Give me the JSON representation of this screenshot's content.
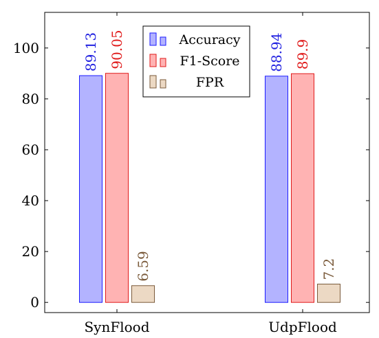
{
  "chart_data": {
    "type": "bar",
    "title": "",
    "xlabel": "",
    "ylabel": "",
    "categories": [
      "SynFlood",
      "UdpFlood"
    ],
    "series": [
      {
        "name": "Accuracy",
        "values": [
          89.13,
          88.94
        ],
        "labels": [
          "89.13",
          "88.94"
        ],
        "fill": "#b3b3ff",
        "stroke": "#1a1aff",
        "text_color": "#2020e0"
      },
      {
        "name": "F1-Score",
        "values": [
          90.05,
          89.9
        ],
        "labels": [
          "90.05",
          "89.9"
        ],
        "fill": "#ffb3b3",
        "stroke": "#e01a1a",
        "text_color": "#e01a1a"
      },
      {
        "name": "FPR",
        "values": [
          6.59,
          7.2
        ],
        "labels": [
          "6.59",
          "7.2"
        ],
        "fill": "#ecd9c4",
        "stroke": "#7a5a3a",
        "text_color": "#7a5a3a"
      }
    ],
    "ylim": [
      -4,
      114
    ],
    "yticks": [
      0,
      20,
      40,
      60,
      80,
      100
    ],
    "grid": false,
    "legend_position": "top-center"
  }
}
